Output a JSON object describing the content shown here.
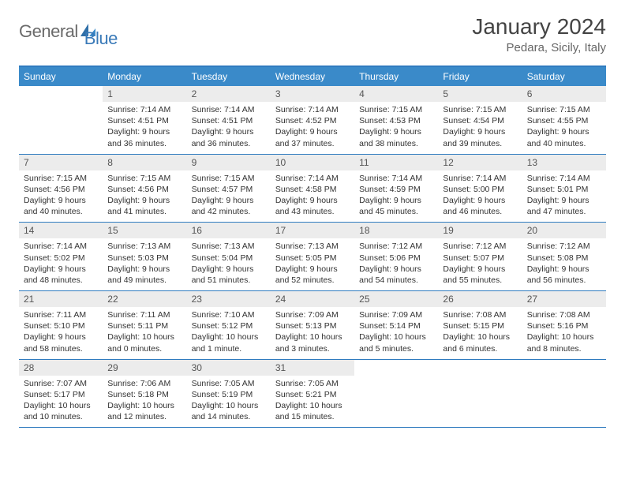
{
  "logo": {
    "text1": "General",
    "text2": "Blue"
  },
  "header": {
    "title": "January 2024",
    "location": "Pedara, Sicily, Italy"
  },
  "colors": {
    "header_blue": "#3a8ac9",
    "rule_blue": "#2f7bbf",
    "daynum_bg": "#ececec",
    "brand_blue": "#3a7ab8"
  },
  "weekdays": [
    "Sunday",
    "Monday",
    "Tuesday",
    "Wednesday",
    "Thursday",
    "Friday",
    "Saturday"
  ],
  "weeks": [
    [
      {
        "n": "",
        "sr": "",
        "ss": "",
        "dl": ""
      },
      {
        "n": "1",
        "sr": "Sunrise: 7:14 AM",
        "ss": "Sunset: 4:51 PM",
        "dl": "Daylight: 9 hours and 36 minutes."
      },
      {
        "n": "2",
        "sr": "Sunrise: 7:14 AM",
        "ss": "Sunset: 4:51 PM",
        "dl": "Daylight: 9 hours and 36 minutes."
      },
      {
        "n": "3",
        "sr": "Sunrise: 7:14 AM",
        "ss": "Sunset: 4:52 PM",
        "dl": "Daylight: 9 hours and 37 minutes."
      },
      {
        "n": "4",
        "sr": "Sunrise: 7:15 AM",
        "ss": "Sunset: 4:53 PM",
        "dl": "Daylight: 9 hours and 38 minutes."
      },
      {
        "n": "5",
        "sr": "Sunrise: 7:15 AM",
        "ss": "Sunset: 4:54 PM",
        "dl": "Daylight: 9 hours and 39 minutes."
      },
      {
        "n": "6",
        "sr": "Sunrise: 7:15 AM",
        "ss": "Sunset: 4:55 PM",
        "dl": "Daylight: 9 hours and 40 minutes."
      }
    ],
    [
      {
        "n": "7",
        "sr": "Sunrise: 7:15 AM",
        "ss": "Sunset: 4:56 PM",
        "dl": "Daylight: 9 hours and 40 minutes."
      },
      {
        "n": "8",
        "sr": "Sunrise: 7:15 AM",
        "ss": "Sunset: 4:56 PM",
        "dl": "Daylight: 9 hours and 41 minutes."
      },
      {
        "n": "9",
        "sr": "Sunrise: 7:15 AM",
        "ss": "Sunset: 4:57 PM",
        "dl": "Daylight: 9 hours and 42 minutes."
      },
      {
        "n": "10",
        "sr": "Sunrise: 7:14 AM",
        "ss": "Sunset: 4:58 PM",
        "dl": "Daylight: 9 hours and 43 minutes."
      },
      {
        "n": "11",
        "sr": "Sunrise: 7:14 AM",
        "ss": "Sunset: 4:59 PM",
        "dl": "Daylight: 9 hours and 45 minutes."
      },
      {
        "n": "12",
        "sr": "Sunrise: 7:14 AM",
        "ss": "Sunset: 5:00 PM",
        "dl": "Daylight: 9 hours and 46 minutes."
      },
      {
        "n": "13",
        "sr": "Sunrise: 7:14 AM",
        "ss": "Sunset: 5:01 PM",
        "dl": "Daylight: 9 hours and 47 minutes."
      }
    ],
    [
      {
        "n": "14",
        "sr": "Sunrise: 7:14 AM",
        "ss": "Sunset: 5:02 PM",
        "dl": "Daylight: 9 hours and 48 minutes."
      },
      {
        "n": "15",
        "sr": "Sunrise: 7:13 AM",
        "ss": "Sunset: 5:03 PM",
        "dl": "Daylight: 9 hours and 49 minutes."
      },
      {
        "n": "16",
        "sr": "Sunrise: 7:13 AM",
        "ss": "Sunset: 5:04 PM",
        "dl": "Daylight: 9 hours and 51 minutes."
      },
      {
        "n": "17",
        "sr": "Sunrise: 7:13 AM",
        "ss": "Sunset: 5:05 PM",
        "dl": "Daylight: 9 hours and 52 minutes."
      },
      {
        "n": "18",
        "sr": "Sunrise: 7:12 AM",
        "ss": "Sunset: 5:06 PM",
        "dl": "Daylight: 9 hours and 54 minutes."
      },
      {
        "n": "19",
        "sr": "Sunrise: 7:12 AM",
        "ss": "Sunset: 5:07 PM",
        "dl": "Daylight: 9 hours and 55 minutes."
      },
      {
        "n": "20",
        "sr": "Sunrise: 7:12 AM",
        "ss": "Sunset: 5:08 PM",
        "dl": "Daylight: 9 hours and 56 minutes."
      }
    ],
    [
      {
        "n": "21",
        "sr": "Sunrise: 7:11 AM",
        "ss": "Sunset: 5:10 PM",
        "dl": "Daylight: 9 hours and 58 minutes."
      },
      {
        "n": "22",
        "sr": "Sunrise: 7:11 AM",
        "ss": "Sunset: 5:11 PM",
        "dl": "Daylight: 10 hours and 0 minutes."
      },
      {
        "n": "23",
        "sr": "Sunrise: 7:10 AM",
        "ss": "Sunset: 5:12 PM",
        "dl": "Daylight: 10 hours and 1 minute."
      },
      {
        "n": "24",
        "sr": "Sunrise: 7:09 AM",
        "ss": "Sunset: 5:13 PM",
        "dl": "Daylight: 10 hours and 3 minutes."
      },
      {
        "n": "25",
        "sr": "Sunrise: 7:09 AM",
        "ss": "Sunset: 5:14 PM",
        "dl": "Daylight: 10 hours and 5 minutes."
      },
      {
        "n": "26",
        "sr": "Sunrise: 7:08 AM",
        "ss": "Sunset: 5:15 PM",
        "dl": "Daylight: 10 hours and 6 minutes."
      },
      {
        "n": "27",
        "sr": "Sunrise: 7:08 AM",
        "ss": "Sunset: 5:16 PM",
        "dl": "Daylight: 10 hours and 8 minutes."
      }
    ],
    [
      {
        "n": "28",
        "sr": "Sunrise: 7:07 AM",
        "ss": "Sunset: 5:17 PM",
        "dl": "Daylight: 10 hours and 10 minutes."
      },
      {
        "n": "29",
        "sr": "Sunrise: 7:06 AM",
        "ss": "Sunset: 5:18 PM",
        "dl": "Daylight: 10 hours and 12 minutes."
      },
      {
        "n": "30",
        "sr": "Sunrise: 7:05 AM",
        "ss": "Sunset: 5:19 PM",
        "dl": "Daylight: 10 hours and 14 minutes."
      },
      {
        "n": "31",
        "sr": "Sunrise: 7:05 AM",
        "ss": "Sunset: 5:21 PM",
        "dl": "Daylight: 10 hours and 15 minutes."
      },
      {
        "n": "",
        "sr": "",
        "ss": "",
        "dl": ""
      },
      {
        "n": "",
        "sr": "",
        "ss": "",
        "dl": ""
      },
      {
        "n": "",
        "sr": "",
        "ss": "",
        "dl": ""
      }
    ]
  ]
}
